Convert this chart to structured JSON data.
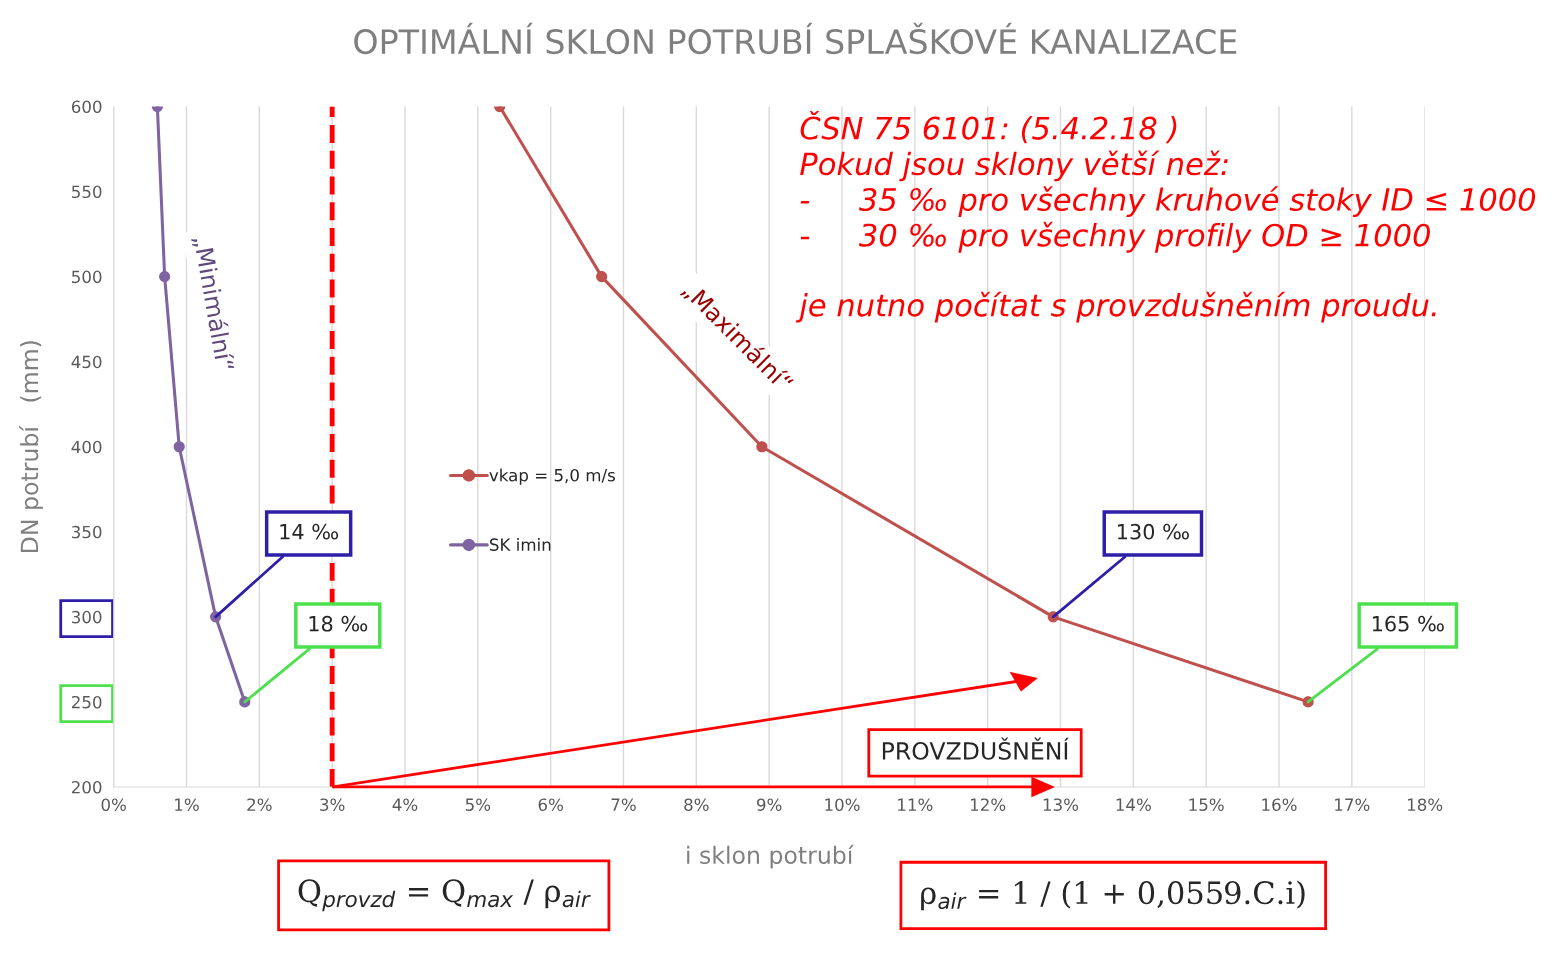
{
  "chart_data": {
    "type": "line",
    "title": "OPTIMÁLNÍ SKLON POTRUBÍ SPLAŠKOVÉ KANALIZACE",
    "xlabel": "i sklon potrubí",
    "ylabel": "DN potrubí   (mm)",
    "series": [
      {
        "name": "vkap = 5,0 m/s",
        "color": "#c0504d",
        "x": [
          5.3,
          6.7,
          8.9,
          12.9,
          16.4
        ],
        "values": [
          600,
          500,
          400,
          300,
          250
        ]
      },
      {
        "name": "SK imin",
        "color": "#8064a2",
        "x": [
          0.6,
          0.7,
          0.9,
          1.4,
          1.8
        ],
        "values": [
          600,
          500,
          400,
          300,
          250
        ]
      }
    ],
    "xlim": [
      0,
      18
    ],
    "xticks": [
      {
        "value": 0,
        "label": "0%"
      },
      {
        "value": 1,
        "label": "1%"
      },
      {
        "value": 2,
        "label": "2%"
      },
      {
        "value": 3,
        "label": "3%"
      },
      {
        "value": 4,
        "label": "4%"
      },
      {
        "value": 5,
        "label": "5%"
      },
      {
        "value": 6,
        "label": "6%"
      },
      {
        "value": 7,
        "label": "7%"
      },
      {
        "value": 8,
        "label": "8%"
      },
      {
        "value": 9,
        "label": "9%"
      },
      {
        "value": 10,
        "label": "10%"
      },
      {
        "value": 11,
        "label": "11%"
      },
      {
        "value": 12,
        "label": "12%"
      },
      {
        "value": 13,
        "label": "13%"
      },
      {
        "value": 14,
        "label": "14%"
      },
      {
        "value": 15,
        "label": "15%"
      },
      {
        "value": 16,
        "label": "16%"
      },
      {
        "value": 17,
        "label": "17%"
      },
      {
        "value": 18,
        "label": "18%"
      }
    ],
    "ylim": [
      200,
      600
    ],
    "yticks": [
      200,
      250,
      300,
      350,
      400,
      450,
      500,
      550,
      600
    ],
    "ref_lines": [
      {
        "axis": "x",
        "value": 3,
        "color": "#ff0000",
        "line_style": "dashed"
      }
    ],
    "grid": "x",
    "legend": "center",
    "marker": "circle",
    "line_style": "solid",
    "annotations": [
      {
        "text": "14 ‰",
        "x": 1.4,
        "y": 300
      },
      {
        "text": "18 ‰",
        "x": 1.8,
        "y": 250
      },
      {
        "text": "130 ‰",
        "x": 12.9,
        "y": 300
      },
      {
        "text": "165 ‰",
        "x": 16.4,
        "y": 250
      },
      "„Minimální“",
      "„Maximální“",
      "ČSN 75 6101: (5.4.2.18 )\nPokud jsou sklony větší než:\n-     35 ‰ pro všechny kruhové stoky ID ≤ 1000\n-     30 ‰ pro všechny profily OD ≥ 1000\n\nje nutno počítat s provzdušněním proudu.",
      "PROVZDUŠNĚNÍ",
      "Q$_{provzd}$ = Q$_{max}$ / ρ$_{air}$",
      "ρ$_{air}$ = 1 / (1 + 0,0559.C.i)"
    ]
  }
}
